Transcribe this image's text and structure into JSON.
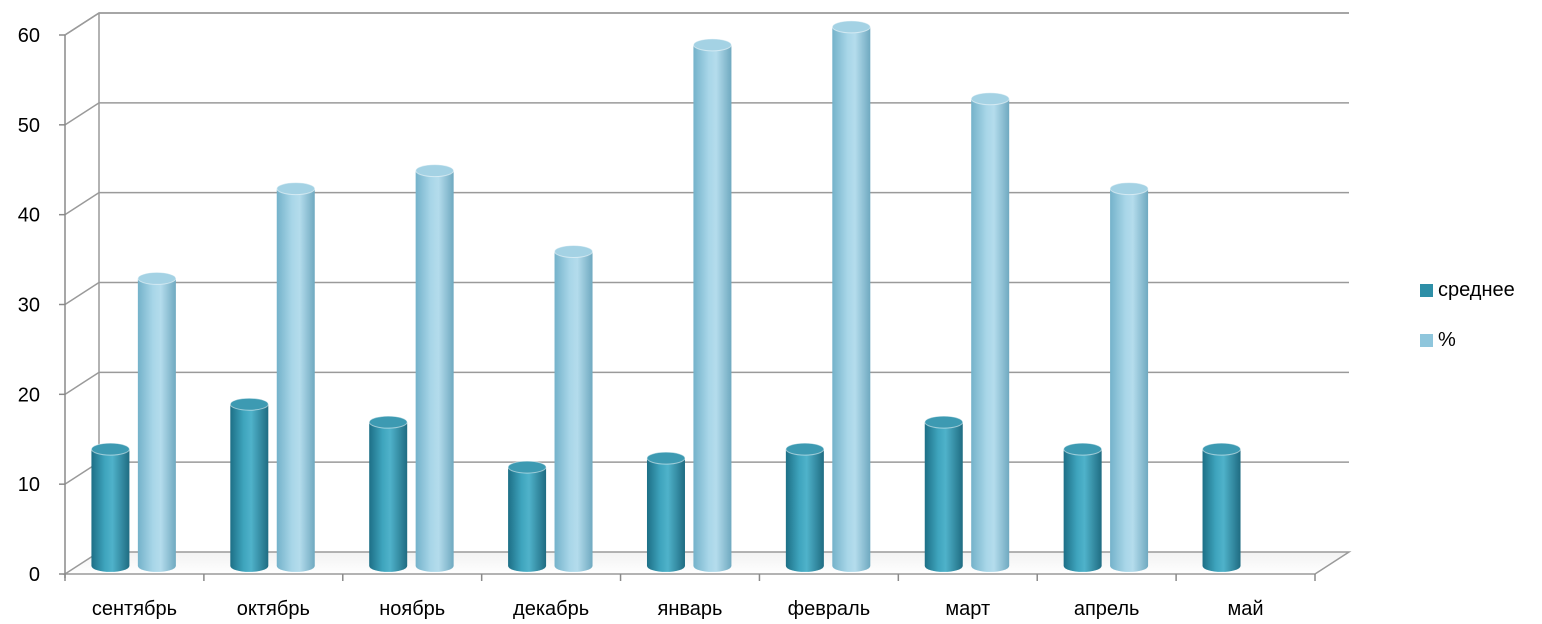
{
  "chart_data": {
    "type": "bar",
    "style": "3d-cylinder",
    "categories": [
      "сентябрь",
      "октябрь",
      "ноябрь",
      "декабрь",
      "январь",
      "февраль",
      "март",
      "апрель",
      "май"
    ],
    "series": [
      {
        "name": "среднее",
        "color": "#2e8fa7",
        "values": [
          13,
          18,
          16,
          11,
          12,
          13,
          16,
          13,
          13
        ]
      },
      {
        "name": "%",
        "color": "#8fc6dc",
        "values": [
          32,
          42,
          44,
          35,
          58,
          60,
          52,
          42,
          null
        ]
      }
    ],
    "ylim": [
      0,
      60
    ],
    "yticks": [
      0,
      10,
      20,
      30,
      40,
      50,
      60
    ],
    "grid": true,
    "legend_position": "right"
  }
}
